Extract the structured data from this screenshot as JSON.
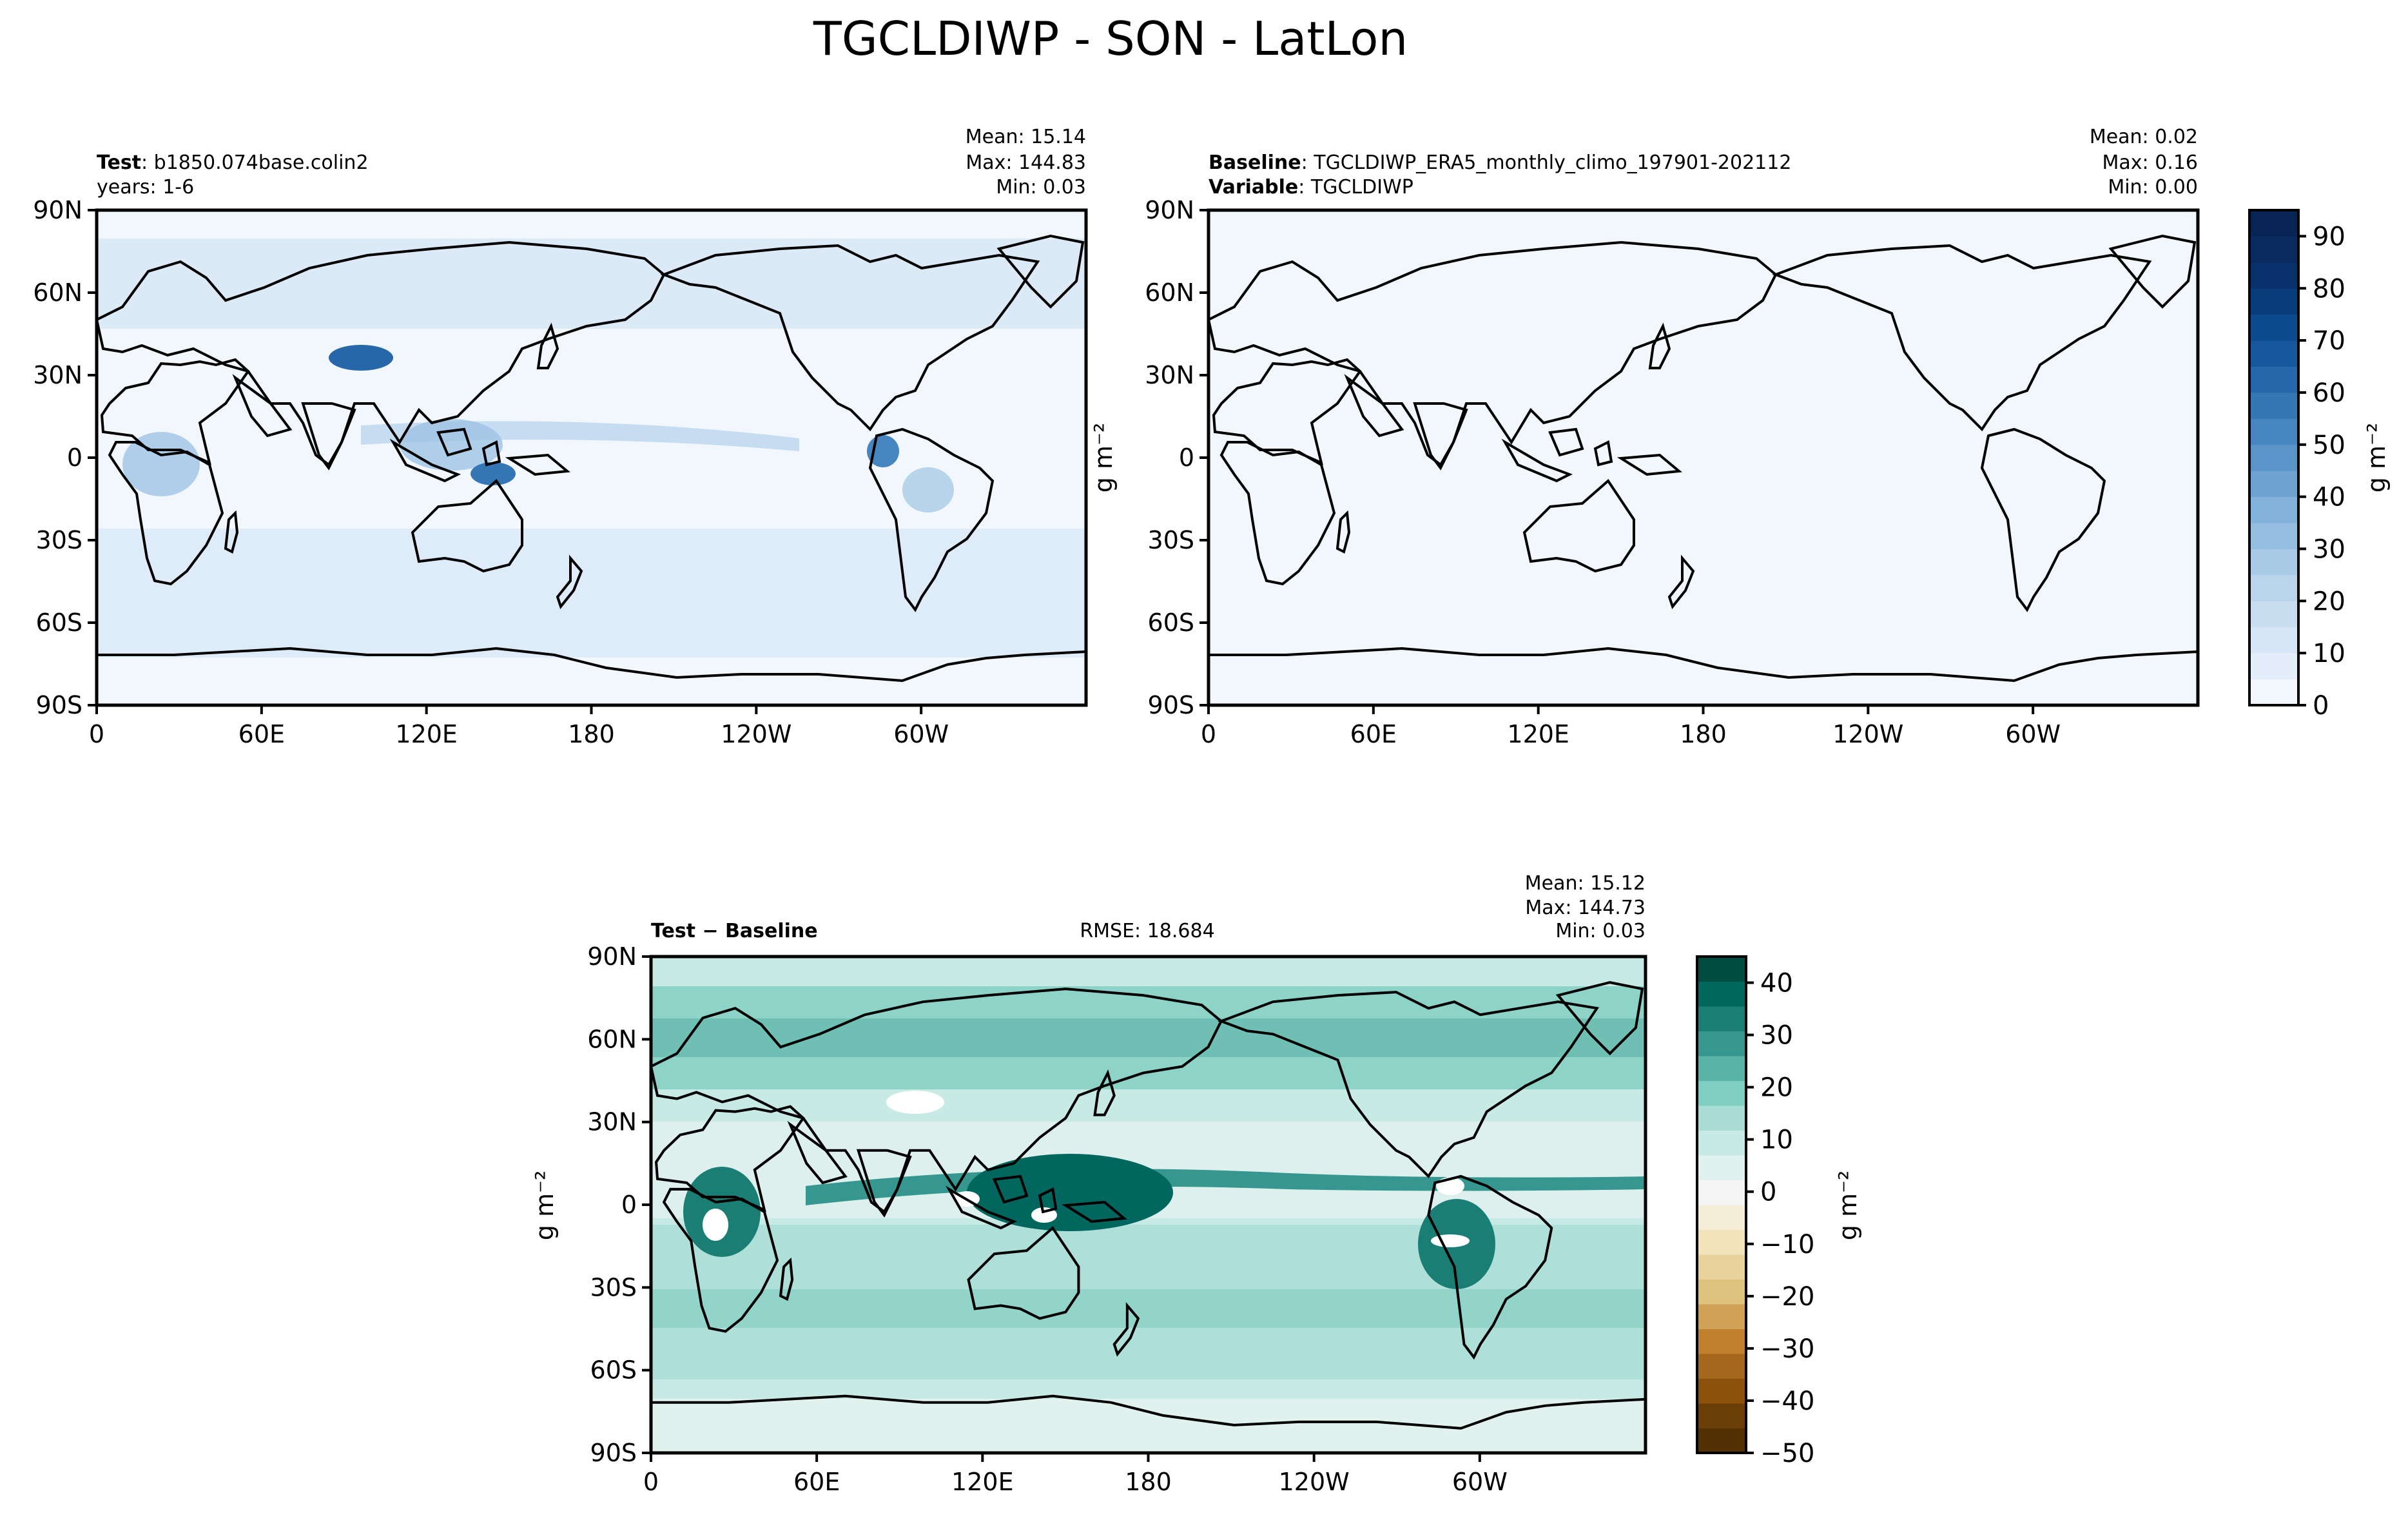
{
  "figure": {
    "title": "TGCLDIWP - SON - LatLon",
    "colors": {
      "ocean_fill": "#f2f7fd",
      "frame": "#000000"
    }
  },
  "panels": {
    "test": {
      "label_bold": "Test",
      "label_rest": ": b1850.074base.colin2",
      "line2": "years: 1-6",
      "stats": {
        "mean": "Mean: 15.14",
        "max": "Max: 144.83",
        "min": "Min:  0.03"
      }
    },
    "baseline": {
      "label_bold": "Baseline",
      "label_rest": ": TGCLDIWP_ERA5_monthly_climo_197901-202112",
      "line2_bold": "Variable",
      "line2_rest": ": TGCLDIWP",
      "stats": {
        "mean": "Mean:  0.02",
        "max": "Max:  0.16",
        "min": "Min:  0.00"
      }
    },
    "diff": {
      "label_bold": "Test − Baseline",
      "rmse": "RMSE: 18.684",
      "stats": {
        "mean": "Mean: 15.12",
        "max": "Max: 144.73",
        "min": "Min:  0.03"
      }
    }
  },
  "axes": {
    "lat_ticks": [
      "90N",
      "60N",
      "30N",
      "0",
      "30S",
      "60S",
      "90S"
    ],
    "lon_ticks": [
      "0",
      "60E",
      "120E",
      "180",
      "120W",
      "60W"
    ]
  },
  "colorbars": {
    "main": {
      "unit": "g m⁻²",
      "ticks": [
        "90",
        "80",
        "70",
        "60",
        "50",
        "40",
        "30",
        "20",
        "10",
        "0"
      ],
      "colors": [
        "#f2f7fd",
        "#e3eefa",
        "#d6e6f6",
        "#c9ddf1",
        "#bad4ec",
        "#a9cae6",
        "#96bee0",
        "#82b1d9",
        "#6ea3d1",
        "#5a94c8",
        "#4685bf",
        "#3576b4",
        "#2567a8",
        "#16589b",
        "#0b4a8c",
        "#083d7c",
        "#08306b",
        "#082a5f",
        "#082454"
      ]
    },
    "diff": {
      "unit": "g m⁻²",
      "ticks": [
        "40",
        "30",
        "20",
        "10",
        "0",
        "−10",
        "−20",
        "−30",
        "−40",
        "−50"
      ],
      "colors": [
        "#543005",
        "#6b3d07",
        "#8c510a",
        "#a5671b",
        "#bf812d",
        "#d0a255",
        "#dfc27d",
        "#ead29c",
        "#f2e3bc",
        "#f6edd8",
        "#f5f5f5",
        "#e0f1ee",
        "#c7eae5",
        "#a8dcd4",
        "#80cdc1",
        "#5ab3a7",
        "#35978f",
        "#1a7e74",
        "#01665e",
        "#004c41"
      ]
    }
  },
  "chart_data": [
    {
      "type": "heatmap",
      "title": "TGCLDIWP - SON - LatLon",
      "panel": "Test: b1850.074base.colin2",
      "levels": [
        0,
        5,
        10,
        15,
        20,
        25,
        30,
        35,
        40,
        45,
        50,
        55,
        60,
        65,
        70,
        75,
        80,
        85,
        90,
        95
      ],
      "stats": {
        "mean": 15.14,
        "max": 144.83,
        "min": 0.03
      },
      "xlim": [
        0,
        360
      ],
      "ylim": [
        -90,
        90
      ]
    },
    {
      "type": "heatmap",
      "panel": "Baseline: TGCLDIWP_ERA5_monthly_climo_197901-202112",
      "stats": {
        "mean": 0.02,
        "max": 0.16,
        "min": 0.0
      },
      "xlim": [
        0,
        360
      ],
      "ylim": [
        -90,
        90
      ]
    },
    {
      "type": "heatmap",
      "panel": "Test − Baseline",
      "levels": [
        -50,
        -45,
        -40,
        -35,
        -30,
        -25,
        -20,
        -15,
        -10,
        -5,
        0,
        5,
        10,
        15,
        20,
        25,
        30,
        35,
        40,
        45
      ],
      "rmse": 18.684,
      "stats": {
        "mean": 15.12,
        "max": 144.73,
        "min": 0.03
      },
      "xlim": [
        0,
        360
      ],
      "ylim": [
        -90,
        90
      ]
    }
  ]
}
